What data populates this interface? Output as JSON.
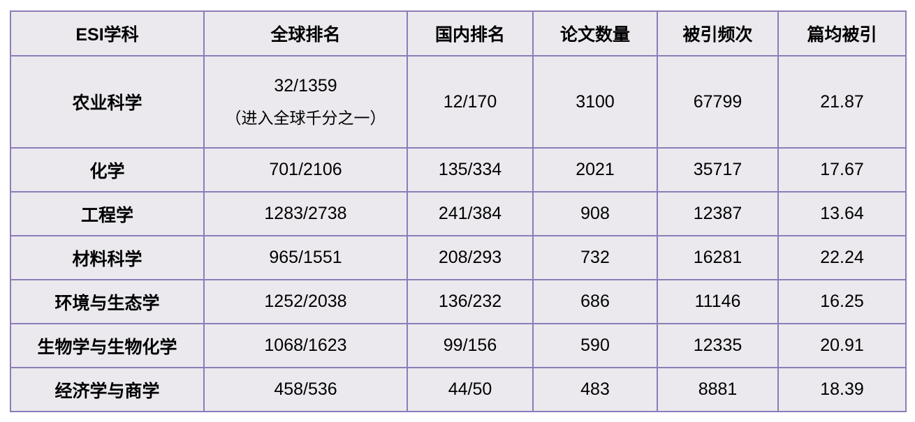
{
  "table": {
    "headers": [
      "ESI学科",
      "全球排名",
      "国内排名",
      "论文数量",
      "被引频次",
      "篇均被引"
    ],
    "rows": [
      {
        "subject": "农业科学",
        "global_rank": "32/1359",
        "global_note": "（进入全球千分之一）",
        "domestic_rank": "12/170",
        "papers": "3100",
        "citations": "67799",
        "avg_citations": "21.87"
      },
      {
        "subject": "化学",
        "global_rank": "701/2106",
        "domestic_rank": "135/334",
        "papers": "2021",
        "citations": "35717",
        "avg_citations": "17.67"
      },
      {
        "subject": "工程学",
        "global_rank": "1283/2738",
        "domestic_rank": "241/384",
        "papers": "908",
        "citations": "12387",
        "avg_citations": "13.64"
      },
      {
        "subject": "材料科学",
        "global_rank": "965/1551",
        "domestic_rank": "208/293",
        "papers": "732",
        "citations": "16281",
        "avg_citations": "22.24"
      },
      {
        "subject": "环境与生态学",
        "global_rank": "1252/2038",
        "domestic_rank": "136/232",
        "papers": "686",
        "citations": "11146",
        "avg_citations": "16.25"
      },
      {
        "subject": "生物学与生物化学",
        "global_rank": "1068/1623",
        "domestic_rank": "99/156",
        "papers": "590",
        "citations": "12335",
        "avg_citations": "20.91"
      },
      {
        "subject": "经济学与商学",
        "global_rank": "458/536",
        "domestic_rank": "44/50",
        "papers": "483",
        "citations": "8881",
        "avg_citations": "18.39"
      }
    ]
  },
  "colors": {
    "border": "#8d7cb8",
    "cell_background": "#ebe9ee"
  }
}
